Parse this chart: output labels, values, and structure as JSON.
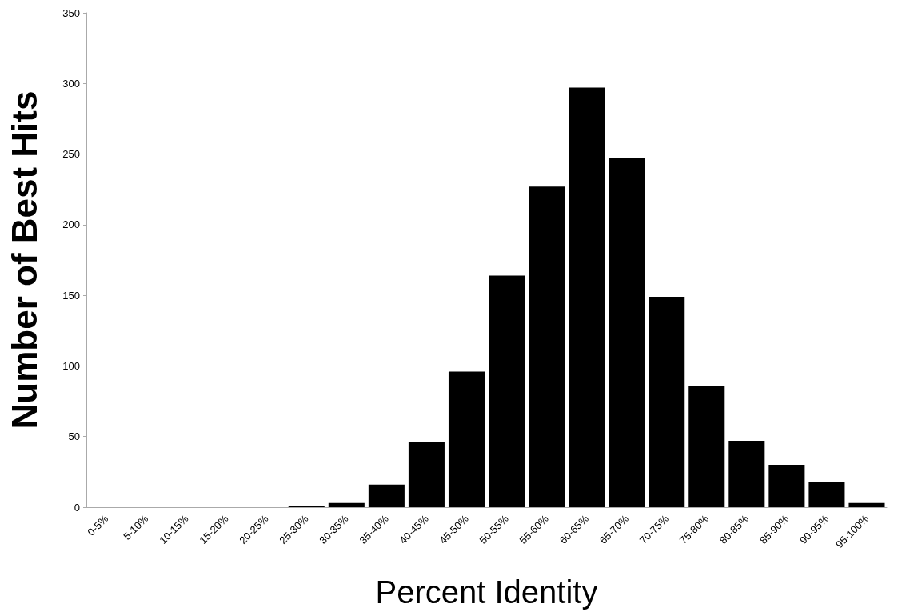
{
  "chart_data": {
    "type": "bar",
    "xlabel": "Percent Identity",
    "ylabel": "Number of Best Hits",
    "categories": [
      "0-5%",
      "5-10%",
      "10-15%",
      "15-20%",
      "20-25%",
      "25-30%",
      "30-35%",
      "35-40%",
      "40-45%",
      "45-50%",
      "50-55%",
      "55-60%",
      "60-65%",
      "65-70%",
      "70-75%",
      "75-80%",
      "80-85%",
      "85-90%",
      "90-95%",
      "95-100%"
    ],
    "values": [
      0,
      0,
      0,
      0,
      0,
      1,
      3,
      16,
      46,
      96,
      164,
      227,
      297,
      247,
      149,
      86,
      47,
      30,
      18,
      3
    ],
    "color": "#000000",
    "ylim": [
      0,
      350
    ],
    "yticks": [
      0,
      50,
      100,
      150,
      200,
      250,
      300,
      350
    ],
    "grid": false
  }
}
